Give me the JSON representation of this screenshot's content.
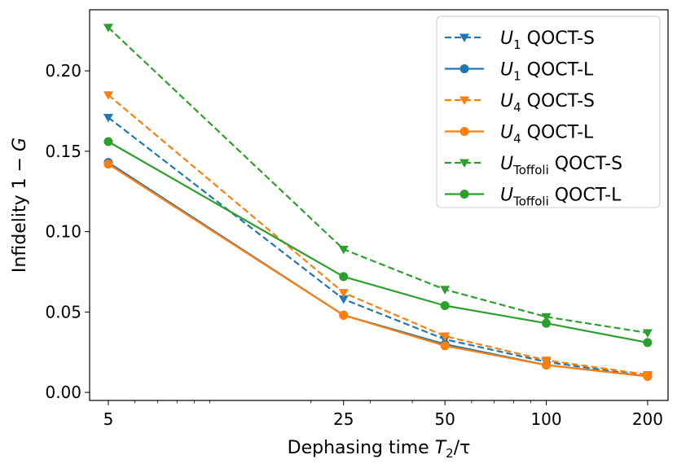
{
  "chart_data": {
    "type": "line",
    "title": "",
    "xlabel": {
      "prefix": "Dephasing time ",
      "var": "T",
      "sub": "2",
      "suffix": "/τ"
    },
    "ylabel": {
      "prefix": "Infidelity   1 − ",
      "var": "G"
    },
    "x_scale": "log",
    "xlim": [
      4.4,
      230
    ],
    "ylim": [
      -0.005,
      0.238
    ],
    "x": [
      5,
      25,
      50,
      100,
      200
    ],
    "x_tick_labels": [
      "5",
      "25",
      "50",
      "100",
      "200"
    ],
    "y_ticks": [
      0.0,
      0.05,
      0.1,
      0.15,
      0.2
    ],
    "y_tick_labels": [
      "0.00",
      "0.05",
      "0.10",
      "0.15",
      "0.20"
    ],
    "legend_position": "top-right",
    "colors": {
      "blue": "#1f77b4",
      "orange": "#ff7f0e",
      "green": "#2ca02c"
    },
    "series": [
      {
        "name": "U1 QOCT-S",
        "sym": "U",
        "sub": "1",
        "label": " QOCT-S",
        "color": "#1f77b4",
        "linestyle": "dashed",
        "marker": "triangle-down",
        "values": [
          0.171,
          0.058,
          0.033,
          0.019,
          0.01
        ]
      },
      {
        "name": "U1 QOCT-L",
        "sym": "U",
        "sub": "1",
        "label": " QOCT-L",
        "color": "#1f77b4",
        "linestyle": "solid",
        "marker": "circle",
        "values": [
          0.143,
          0.048,
          0.03,
          0.017,
          0.01
        ]
      },
      {
        "name": "U4 QOCT-S",
        "sym": "U",
        "sub": "4",
        "label": " QOCT-S",
        "color": "#ff7f0e",
        "linestyle": "dashed",
        "marker": "triangle-down",
        "values": [
          0.185,
          0.062,
          0.035,
          0.02,
          0.011
        ]
      },
      {
        "name": "U4 QOCT-L",
        "sym": "U",
        "sub": "4",
        "label": " QOCT-L",
        "color": "#ff7f0e",
        "linestyle": "solid",
        "marker": "circle",
        "values": [
          0.142,
          0.048,
          0.029,
          0.017,
          0.01
        ]
      },
      {
        "name": "UToffoli QOCT-S",
        "sym": "U",
        "sub": "Toffoli",
        "label": " QOCT-S",
        "color": "#2ca02c",
        "linestyle": "dashed",
        "marker": "triangle-down",
        "values": [
          0.227,
          0.089,
          0.064,
          0.047,
          0.037
        ]
      },
      {
        "name": "UToffoli QOCT-L",
        "sym": "U",
        "sub": "Toffoli",
        "label": " QOCT-L",
        "color": "#2ca02c",
        "linestyle": "solid",
        "marker": "circle",
        "values": [
          0.156,
          0.072,
          0.054,
          0.043,
          0.031
        ]
      }
    ]
  }
}
